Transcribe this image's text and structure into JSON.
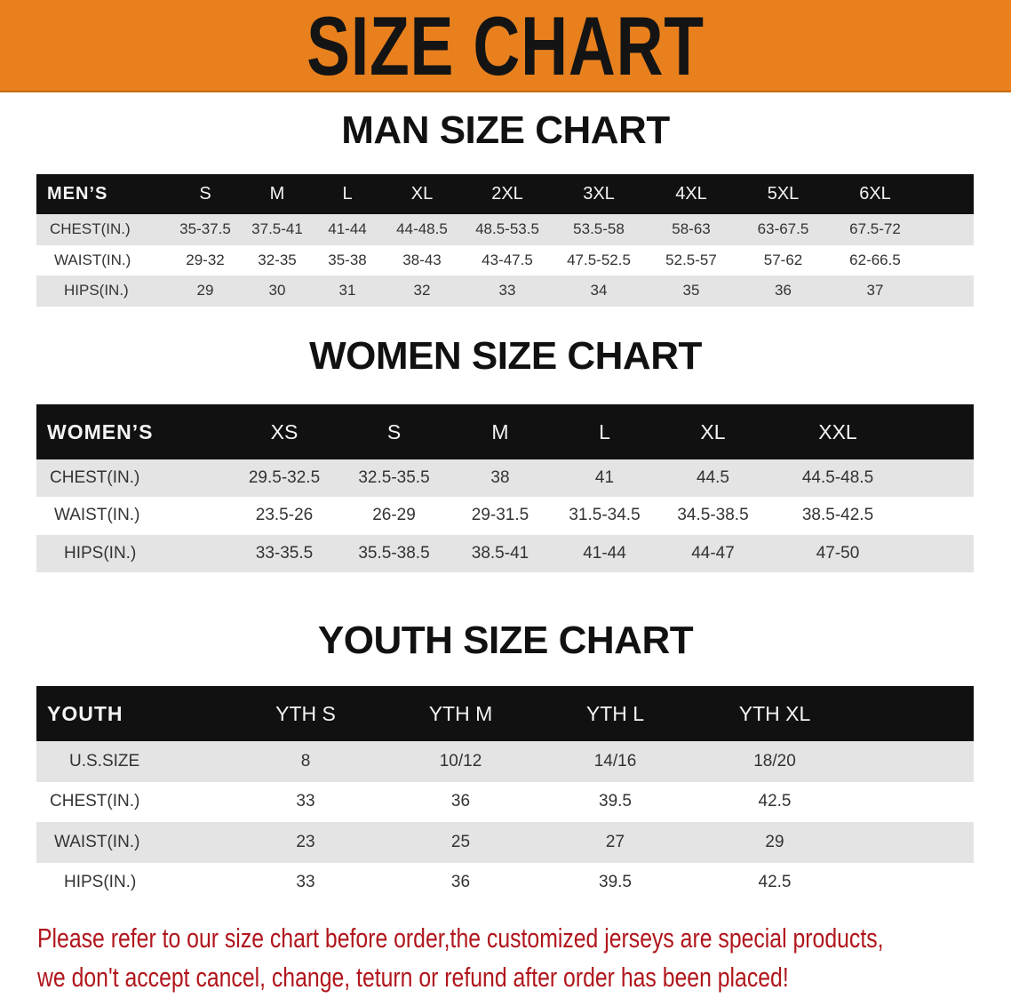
{
  "banner": {
    "title": "SIZE CHART",
    "color": "#e8801e"
  },
  "men": {
    "title": "MAN SIZE CHART",
    "label": "MEN’S",
    "sizes": [
      "S",
      "M",
      "L",
      "XL",
      "2XL",
      "3XL",
      "4XL",
      "5XL",
      "6XL"
    ],
    "rows": [
      {
        "label": "CHEST(IN.)",
        "values": [
          "35-37.5",
          "37.5-41",
          "41-44",
          "44-48.5",
          "48.5-53.5",
          "53.5-58",
          "58-63",
          "63-67.5",
          "67.5-72"
        ]
      },
      {
        "label": "WAIST(IN.)",
        "values": [
          "29-32",
          "32-35",
          "35-38",
          "38-43",
          "43-47.5",
          "47.5-52.5",
          "52.5-57",
          "57-62",
          "62-66.5"
        ]
      },
      {
        "label": "HIPS(IN.)",
        "values": [
          "29",
          "30",
          "31",
          "32",
          "33",
          "34",
          "35",
          "36",
          "37"
        ]
      }
    ]
  },
  "women": {
    "title": "WOMEN SIZE CHART",
    "label": "WOMEN’S",
    "sizes": [
      "XS",
      "S",
      "M",
      "L",
      "XL",
      "XXL"
    ],
    "rows": [
      {
        "label": "CHEST(IN.)",
        "values": [
          "29.5-32.5",
          "32.5-35.5",
          "38",
          "41",
          "44.5",
          "44.5-48.5"
        ]
      },
      {
        "label": "WAIST(IN.)",
        "values": [
          "23.5-26",
          "26-29",
          "29-31.5",
          "31.5-34.5",
          "34.5-38.5",
          "38.5-42.5"
        ]
      },
      {
        "label": "HIPS(IN.)",
        "values": [
          "33-35.5",
          "35.5-38.5",
          "38.5-41",
          "41-44",
          "44-47",
          "47-50"
        ]
      }
    ]
  },
  "youth": {
    "title": "YOUTH SIZE CHART",
    "label": "YOUTH",
    "sizes": [
      "YTH S",
      "YTH M",
      "YTH L",
      "YTH XL"
    ],
    "rows": [
      {
        "label": "U.S.SIZE",
        "values": [
          "8",
          "10/12",
          "14/16",
          "18/20"
        ]
      },
      {
        "label": "CHEST(IN.)",
        "values": [
          "33",
          "36",
          "39.5",
          "42.5"
        ]
      },
      {
        "label": "WAIST(IN.)",
        "values": [
          "23",
          "25",
          "27",
          "29"
        ]
      },
      {
        "label": "HIPS(IN.)",
        "values": [
          "33",
          "36",
          "39.5",
          "42.5"
        ]
      }
    ]
  },
  "notice": {
    "line1": "Please refer to our size chart before order,the customized jerseys are special products,",
    "line2": "we don't accept cancel, change, teturn or refund after order has been placed!",
    "color": "#b0161c"
  }
}
